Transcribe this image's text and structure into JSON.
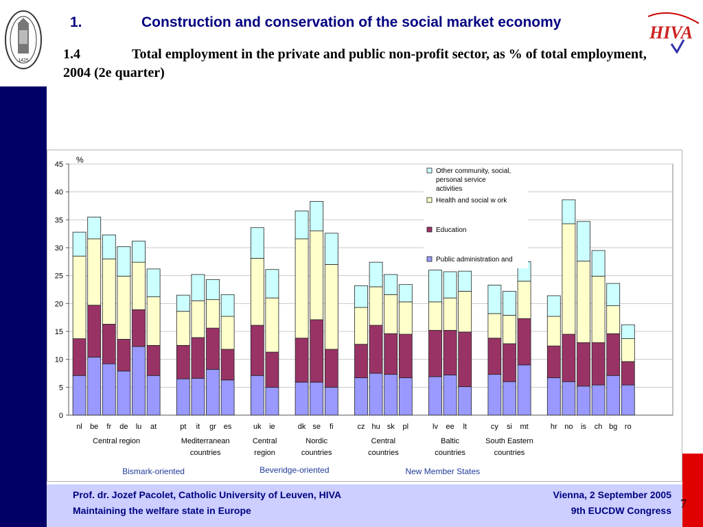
{
  "header": {
    "section_num": "1.",
    "section_title": "Construction and conservation of the social market economy",
    "subsection_num": "1.4",
    "subsection_title": "Total employment in the private and public non-profit sector, as % of total employment, 2004 (2e quarter)"
  },
  "logo_left": {
    "year": "1425",
    "ring_text": "UNIVERSITAS CATHOLICA LOVANIENSIS"
  },
  "logo_right": {
    "text": "HIVA"
  },
  "chart_data": {
    "type": "bar",
    "stacked": true,
    "ylabel": "%",
    "ylim": [
      0,
      45
    ],
    "yticks": [
      0,
      5,
      10,
      15,
      20,
      25,
      30,
      35,
      40,
      45
    ],
    "grid": true,
    "legend_position": "top-right",
    "categories": [
      "nl",
      "be",
      "fr",
      "de",
      "lu",
      "at",
      "pt",
      "it",
      "gr",
      "es",
      "uk",
      "ie",
      "dk",
      "se",
      "fi",
      "cz",
      "hu",
      "sk",
      "pl",
      "lv",
      "ee",
      "lt",
      "cy",
      "si",
      "mt",
      "hr",
      "no",
      "is",
      "ch",
      "bg",
      "ro"
    ],
    "category_slots": [
      0,
      1,
      2,
      3,
      4,
      5,
      7,
      8,
      9,
      10,
      12,
      13,
      15,
      16,
      17,
      19,
      20,
      21,
      22,
      24,
      25,
      26,
      28,
      29,
      30,
      32,
      33,
      34,
      35,
      36,
      37
    ],
    "series": [
      {
        "name": "Public administration and",
        "color": "#9999ff",
        "values": [
          7.1,
          10.4,
          9.2,
          7.9,
          12.3,
          7.1,
          6.5,
          6.6,
          8.2,
          6.3,
          7.1,
          5.0,
          5.9,
          5.9,
          5.0,
          6.7,
          7.5,
          7.3,
          6.7,
          6.9,
          7.2,
          5.1,
          7.3,
          6.0,
          9.0,
          6.7,
          6.0,
          5.2,
          5.4,
          7.1,
          5.4
        ]
      },
      {
        "name": "Education",
        "color": "#993366",
        "values": [
          6.6,
          9.3,
          7.1,
          5.7,
          6.6,
          5.4,
          6.0,
          7.3,
          7.4,
          5.5,
          9.0,
          6.3,
          7.9,
          11.2,
          6.8,
          6.0,
          8.6,
          7.3,
          7.8,
          8.3,
          8.0,
          9.8,
          6.5,
          6.8,
          8.3,
          5.7,
          8.5,
          7.8,
          7.6,
          7.5,
          4.2
        ]
      },
      {
        "name": "Health and social w ork",
        "color": "#ffffcc",
        "values": [
          14.8,
          11.9,
          11.7,
          11.3,
          8.5,
          8.7,
          6.1,
          6.6,
          5.1,
          5.9,
          12.0,
          9.7,
          17.8,
          15.9,
          15.2,
          6.6,
          6.9,
          7.0,
          5.8,
          5.1,
          5.8,
          7.3,
          4.4,
          5.1,
          6.7,
          5.3,
          19.8,
          14.6,
          11.9,
          5.0,
          4.1
        ]
      },
      {
        "name": "Other community, social, personal service activities",
        "color": "#ccffff",
        "values": [
          4.3,
          3.9,
          4.3,
          5.3,
          3.8,
          5.0,
          2.9,
          4.7,
          3.6,
          3.9,
          5.5,
          5.1,
          5.0,
          5.3,
          5.6,
          3.9,
          4.4,
          3.6,
          3.1,
          5.7,
          4.7,
          3.6,
          5.1,
          4.3,
          3.5,
          3.7,
          4.3,
          7.1,
          4.6,
          4.0,
          2.5
        ]
      }
    ],
    "group_labels": [
      {
        "lines": [
          "Central region"
        ],
        "center_slot": 2.5
      },
      {
        "lines": [
          "Mediterranean",
          "countries"
        ],
        "center_slot": 8.5
      },
      {
        "lines": [
          "Central",
          "region"
        ],
        "center_slot": 12.5
      },
      {
        "lines": [
          "Nordic",
          "countries"
        ],
        "center_slot": 16
      },
      {
        "lines": [
          "Central",
          "countries"
        ],
        "center_slot": 20.5
      },
      {
        "lines": [
          "Baltic",
          "countries"
        ],
        "center_slot": 25
      },
      {
        "lines": [
          "South Eastern",
          "countries"
        ],
        "center_slot": 29
      },
      {
        "lines": [],
        "center_slot": 34.5
      }
    ],
    "family_labels": [
      {
        "text": "Bismark-oriented",
        "center_slot": 5
      },
      {
        "text": "Beveridge-oriented",
        "center_slot": 14.5
      },
      {
        "text": "New Member States",
        "center_slot": 24.5
      }
    ]
  },
  "footer": {
    "author": "Prof. dr. Jozef Pacolet, Catholic University of Leuven, HIVA",
    "topic": "Maintaining the welfare state in Europe",
    "place_date": "Vienna, 2 September 2005",
    "event": "9th EUCDW Congress",
    "page": "7"
  }
}
